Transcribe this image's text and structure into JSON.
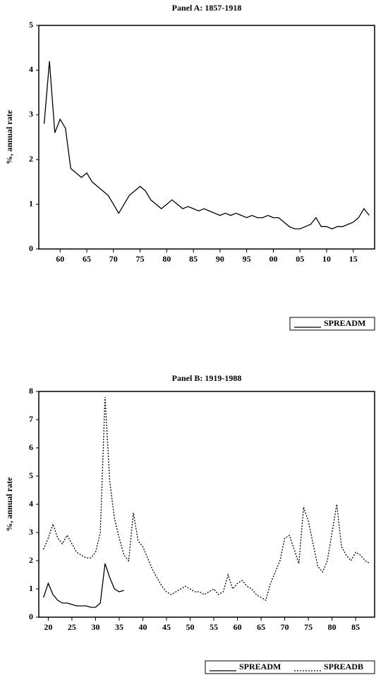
{
  "chart_data": [
    {
      "type": "line",
      "title": "Panel A:  1857-1918",
      "ylabel": "%, annual rate",
      "x": [
        1857,
        1858,
        1859,
        1860,
        1861,
        1862,
        1863,
        1864,
        1865,
        1866,
        1867,
        1868,
        1869,
        1870,
        1871,
        1872,
        1873,
        1874,
        1875,
        1876,
        1877,
        1878,
        1879,
        1880,
        1881,
        1882,
        1883,
        1884,
        1885,
        1886,
        1887,
        1888,
        1889,
        1890,
        1891,
        1892,
        1893,
        1894,
        1895,
        1896,
        1897,
        1898,
        1899,
        1900,
        1901,
        1902,
        1903,
        1904,
        1905,
        1906,
        1907,
        1908,
        1909,
        1910,
        1911,
        1912,
        1913,
        1914,
        1915,
        1916,
        1917,
        1918
      ],
      "series": [
        {
          "name": "SPREADM",
          "color": "#000000",
          "dash": "solid",
          "values": [
            2.8,
            4.2,
            2.6,
            2.9,
            2.7,
            1.8,
            1.7,
            1.6,
            1.7,
            1.5,
            1.4,
            1.3,
            1.2,
            1.0,
            0.8,
            1.0,
            1.2,
            1.3,
            1.4,
            1.3,
            1.1,
            1.0,
            0.9,
            1.0,
            1.1,
            1.0,
            0.9,
            0.95,
            0.9,
            0.85,
            0.9,
            0.85,
            0.8,
            0.75,
            0.8,
            0.75,
            0.8,
            0.75,
            0.7,
            0.75,
            0.7,
            0.7,
            0.75,
            0.7,
            0.7,
            0.6,
            0.5,
            0.45,
            0.45,
            0.5,
            0.55,
            0.7,
            0.5,
            0.5,
            0.45,
            0.5,
            0.5,
            0.55,
            0.6,
            0.7,
            0.9,
            0.75
          ]
        }
      ],
      "xlim": [
        1856,
        1919
      ],
      "ylim": [
        0,
        5
      ],
      "yticks": [
        0,
        1,
        2,
        3,
        4,
        5
      ],
      "xticks": [
        {
          "value": 1860,
          "label": "60"
        },
        {
          "value": 1865,
          "label": "65"
        },
        {
          "value": 1870,
          "label": "70"
        },
        {
          "value": 1875,
          "label": "75"
        },
        {
          "value": 1880,
          "label": "80"
        },
        {
          "value": 1885,
          "label": "85"
        },
        {
          "value": 1890,
          "label": "90"
        },
        {
          "value": 1895,
          "label": "95"
        },
        {
          "value": 1900,
          "label": "00"
        },
        {
          "value": 1905,
          "label": "05"
        },
        {
          "value": 1910,
          "label": "10"
        },
        {
          "value": 1915,
          "label": "15"
        }
      ],
      "grid": false,
      "legend": "bottom-right"
    },
    {
      "type": "line",
      "title": "Panel B:  1919-1988",
      "ylabel": "%, annual rate",
      "x": [
        1919,
        1920,
        1921,
        1922,
        1923,
        1924,
        1925,
        1926,
        1927,
        1928,
        1929,
        1930,
        1931,
        1932,
        1933,
        1934,
        1935,
        1936,
        1937,
        1938,
        1939,
        1940,
        1941,
        1942,
        1943,
        1944,
        1945,
        1946,
        1947,
        1948,
        1949,
        1950,
        1951,
        1952,
        1953,
        1954,
        1955,
        1956,
        1957,
        1958,
        1959,
        1960,
        1961,
        1962,
        1963,
        1964,
        1965,
        1966,
        1967,
        1968,
        1969,
        1970,
        1971,
        1972,
        1973,
        1974,
        1975,
        1976,
        1977,
        1978,
        1979,
        1980,
        1981,
        1982,
        1983,
        1984,
        1985,
        1986,
        1987,
        1988
      ],
      "series": [
        {
          "name": "SPREADM",
          "color": "#000000",
          "dash": "solid",
          "values": [
            0.7,
            1.2,
            0.8,
            0.6,
            0.5,
            0.5,
            0.45,
            0.4,
            0.4,
            0.4,
            0.35,
            0.35,
            0.5,
            1.9,
            1.4,
            1.0,
            0.9,
            0.95,
            null,
            null,
            null,
            null,
            null,
            null,
            null,
            null,
            null,
            null,
            null,
            null,
            null,
            null,
            null,
            null,
            null,
            null,
            null,
            null,
            null,
            null,
            null,
            null,
            null,
            null,
            null,
            null,
            null,
            null,
            null,
            null,
            null,
            null,
            null,
            null,
            null,
            null,
            null,
            null,
            null,
            null,
            null,
            null,
            null,
            null,
            null,
            null,
            null,
            null,
            null,
            null
          ]
        },
        {
          "name": "SPREADB",
          "color": "#000000",
          "dash": "dashed",
          "values": [
            2.4,
            2.8,
            3.3,
            2.8,
            2.6,
            2.9,
            2.6,
            2.3,
            2.2,
            2.1,
            2.1,
            2.3,
            3.0,
            7.8,
            4.8,
            3.5,
            2.8,
            2.2,
            2.0,
            3.7,
            2.7,
            2.5,
            2.1,
            1.7,
            1.4,
            1.1,
            0.9,
            0.8,
            0.9,
            1.0,
            1.1,
            1.0,
            0.9,
            0.9,
            0.8,
            0.9,
            1.0,
            0.8,
            0.9,
            1.5,
            1.0,
            1.2,
            1.3,
            1.1,
            1.0,
            0.8,
            0.7,
            0.6,
            1.2,
            1.6,
            2.0,
            2.8,
            2.9,
            2.4,
            1.9,
            3.9,
            3.4,
            2.6,
            1.8,
            1.6,
            2.0,
            3.0,
            4.0,
            2.5,
            2.2,
            2.0,
            2.3,
            2.2,
            2.0,
            1.9
          ]
        }
      ],
      "xlim": [
        1918,
        1989
      ],
      "ylim": [
        0,
        8
      ],
      "yticks": [
        0,
        1,
        2,
        3,
        4,
        5,
        6,
        7,
        8
      ],
      "xticks": [
        {
          "value": 1920,
          "label": "20"
        },
        {
          "value": 1925,
          "label": "25"
        },
        {
          "value": 1930,
          "label": "30"
        },
        {
          "value": 1935,
          "label": "35"
        },
        {
          "value": 1940,
          "label": "40"
        },
        {
          "value": 1945,
          "label": "45"
        },
        {
          "value": 1950,
          "label": "50"
        },
        {
          "value": 1955,
          "label": "55"
        },
        {
          "value": 1960,
          "label": "60"
        },
        {
          "value": 1965,
          "label": "65"
        },
        {
          "value": 1970,
          "label": "70"
        },
        {
          "value": 1975,
          "label": "75"
        },
        {
          "value": 1980,
          "label": "80"
        },
        {
          "value": 1985,
          "label": "85"
        }
      ],
      "grid": false,
      "legend": "bottom-right"
    }
  ]
}
